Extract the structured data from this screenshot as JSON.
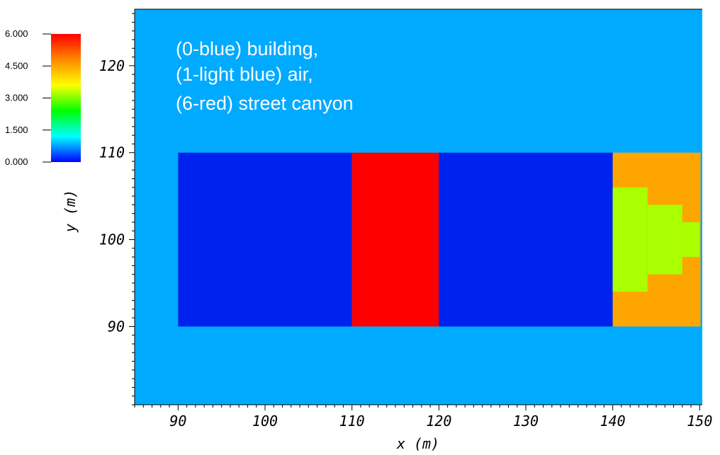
{
  "chart_data": {
    "type": "heatmap",
    "title": "",
    "xlabel": "x (m)",
    "ylabel": "y (m)",
    "xlim": [
      85,
      150.3
    ],
    "ylim": [
      81,
      126.5
    ],
    "x_ticks": [
      90,
      100,
      110,
      120,
      130,
      140,
      150
    ],
    "y_ticks": [
      90,
      100,
      110,
      120
    ],
    "background": {
      "value": 1,
      "color": "#00aaff"
    },
    "cells": [
      {
        "x0": 90,
        "x1": 110,
        "y0": 90,
        "y1": 110,
        "value": 0,
        "color": "#0022ee"
      },
      {
        "x0": 110,
        "x1": 120,
        "y0": 90,
        "y1": 110,
        "value": 6,
        "color": "#ff0000"
      },
      {
        "x0": 120,
        "x1": 140,
        "y0": 90,
        "y1": 110,
        "value": 0,
        "color": "#0022ee"
      },
      {
        "x0": 140,
        "x1": 150.1,
        "y0": 90,
        "y1": 110,
        "value": 5,
        "color": "#ffa500"
      },
      {
        "x0": 140,
        "x1": 144,
        "y0": 94,
        "y1": 106,
        "value": 4,
        "color": "#aaff00"
      },
      {
        "x0": 144,
        "x1": 148,
        "y0": 96,
        "y1": 104,
        "value": 4,
        "color": "#aaff00"
      },
      {
        "x0": 148,
        "x1": 150,
        "y0": 98,
        "y1": 102,
        "value": 4,
        "color": "#aaff00"
      }
    ],
    "colorbar": {
      "min": 0,
      "max": 6,
      "labels": [
        "6.000",
        "4.500",
        "3.000",
        "1.500",
        "0.000"
      ],
      "stops": [
        "#0000ff",
        "#00ffff",
        "#00ff00",
        "#ffff00",
        "#ff8800",
        "#ff0000"
      ]
    },
    "annotation": [
      "(0-blue) building,",
      "(1-light blue) air,",
      "(6-red) street canyon"
    ]
  }
}
